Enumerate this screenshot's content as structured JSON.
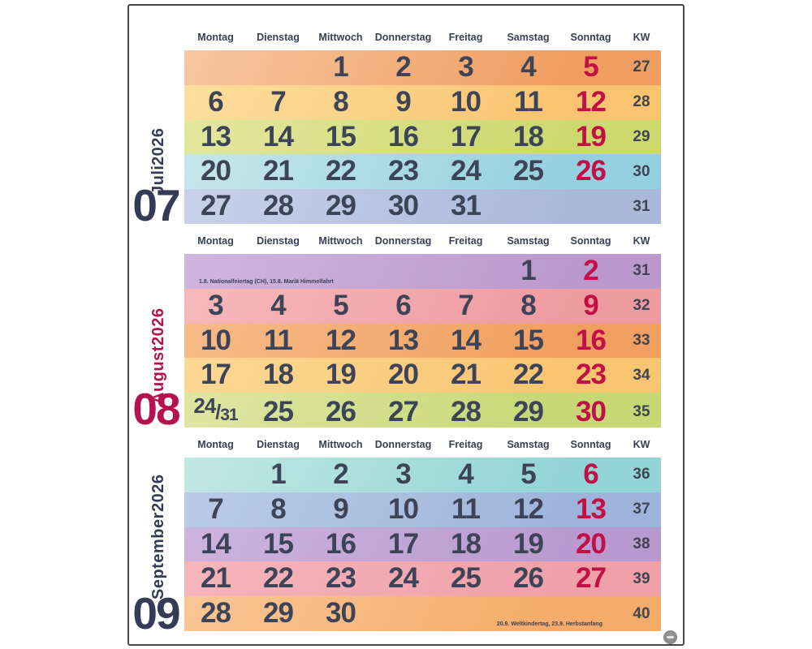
{
  "calendar": {
    "weekday_headers": [
      "Montag",
      "Dienstag",
      "Mittwoch",
      "Donnerstag",
      "Freitag",
      "Samstag",
      "Sonntag"
    ],
    "kw_header": "KW",
    "colors": {
      "date": "#3e4457",
      "sunday": "#c11045",
      "kw": "#3f4450",
      "header": "#3a4054"
    },
    "months": [
      {
        "number": "07",
        "name": "Juli",
        "year": "2026",
        "accent_color": "#343b54",
        "weeks": [
          {
            "days": [
              "",
              "",
              "1",
              "2",
              "3",
              "4",
              "5"
            ],
            "kw": "27",
            "bg_top": "#f8c6a0",
            "bg_bottom": "#ef9e61",
            "note": "",
            "note_pos": ""
          },
          {
            "days": [
              "6",
              "7",
              "8",
              "9",
              "10",
              "11",
              "12"
            ],
            "kw": "28",
            "bg_top": "#fcdf9e",
            "bg_bottom": "#f9c370",
            "note": "",
            "note_pos": ""
          },
          {
            "days": [
              "13",
              "14",
              "15",
              "16",
              "17",
              "18",
              "19"
            ],
            "kw": "29",
            "bg_top": "#e3e79f",
            "bg_bottom": "#cbd96d",
            "note": "",
            "note_pos": ""
          },
          {
            "days": [
              "20",
              "21",
              "22",
              "23",
              "24",
              "25",
              "26"
            ],
            "kw": "30",
            "bg_top": "#c6e7ea",
            "bg_bottom": "#94d0e0",
            "note": "",
            "note_pos": ""
          },
          {
            "days": [
              "27",
              "28",
              "29",
              "30",
              "31",
              "",
              ""
            ],
            "kw": "31",
            "bg_top": "#c9d1ea",
            "bg_bottom": "#aab8dc",
            "note": "",
            "note_pos": ""
          }
        ]
      },
      {
        "number": "08",
        "name": "August",
        "year": "2026",
        "accent_color": "#b5114e",
        "weeks": [
          {
            "days": [
              "",
              "",
              "",
              "",
              "",
              "1",
              "2"
            ],
            "kw": "31",
            "bg_top": "#cfb6df",
            "bg_bottom": "#bb99cf",
            "note": "1.8. Nationalfeiertag (CH), 15.8. Mariä Himmelfahrt",
            "note_pos": "left"
          },
          {
            "days": [
              "3",
              "4",
              "5",
              "6",
              "7",
              "8",
              "9"
            ],
            "kw": "32",
            "bg_top": "#f6b9ba",
            "bg_bottom": "#ee9ba0",
            "note": "",
            "note_pos": ""
          },
          {
            "days": [
              "10",
              "11",
              "12",
              "13",
              "14",
              "15",
              "16"
            ],
            "kw": "33",
            "bg_top": "#f7bb87",
            "bg_bottom": "#f19f60",
            "note": "",
            "note_pos": ""
          },
          {
            "days": [
              "17",
              "18",
              "19",
              "20",
              "21",
              "22",
              "23"
            ],
            "kw": "34",
            "bg_top": "#fcd994",
            "bg_bottom": "#f9c471",
            "note": "",
            "note_pos": ""
          },
          {
            "days": [
              "24/31",
              "25",
              "26",
              "27",
              "28",
              "29",
              "30"
            ],
            "kw": "35",
            "bg_top": "#dfe6a4",
            "bg_bottom": "#c6d773",
            "note": "",
            "note_pos": ""
          }
        ]
      },
      {
        "number": "09",
        "name": "September",
        "year": "2026",
        "accent_color": "#343b54",
        "weeks": [
          {
            "days": [
              "",
              "1",
              "2",
              "3",
              "4",
              "5",
              "6"
            ],
            "kw": "36",
            "bg_top": "#c2e8e3",
            "bg_bottom": "#93d4d6",
            "note": "",
            "note_pos": ""
          },
          {
            "days": [
              "7",
              "8",
              "9",
              "10",
              "11",
              "12",
              "13"
            ],
            "kw": "37",
            "bg_top": "#b9cbe7",
            "bg_bottom": "#9fb4da",
            "note": "",
            "note_pos": ""
          },
          {
            "days": [
              "14",
              "15",
              "16",
              "17",
              "18",
              "19",
              "20"
            ],
            "kw": "38",
            "bg_top": "#cdb4de",
            "bg_bottom": "#b99ad0",
            "note": "",
            "note_pos": ""
          },
          {
            "days": [
              "21",
              "22",
              "23",
              "24",
              "25",
              "26",
              "27"
            ],
            "kw": "39",
            "bg_top": "#f6b5bc",
            "bg_bottom": "#efa0a9",
            "note": "",
            "note_pos": ""
          },
          {
            "days": [
              "28",
              "29",
              "30",
              "",
              "",
              "",
              ""
            ],
            "kw": "40",
            "bg_top": "#fac694",
            "bg_bottom": "#f5ab69",
            "note": "20.9. Weltkindertag, 23.9. Herbstanfang",
            "note_pos": "right"
          }
        ]
      }
    ]
  }
}
